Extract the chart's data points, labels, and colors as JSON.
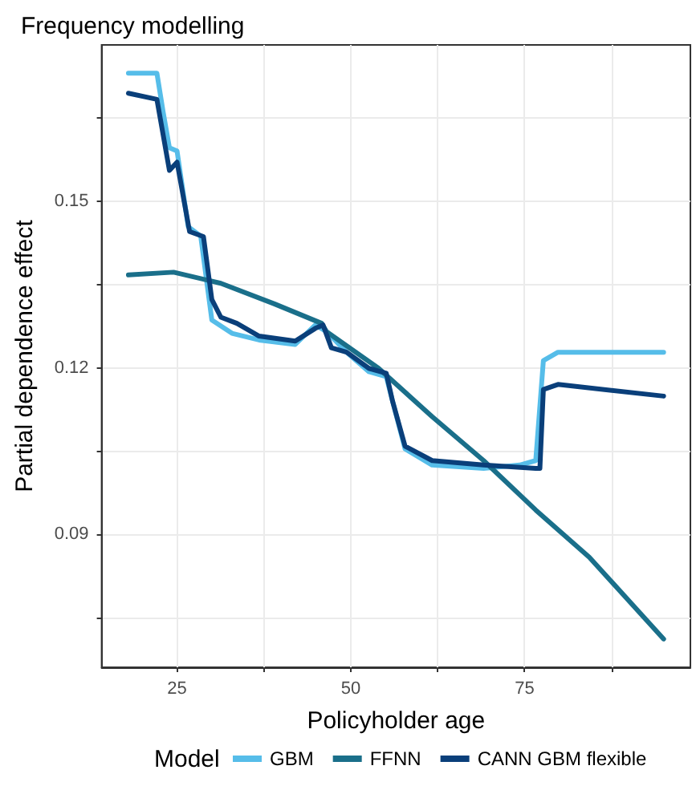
{
  "chart_data": {
    "type": "line",
    "title": "Frequency modelling",
    "xlabel": "Policyholder age",
    "ylabel": "Partial dependence effect",
    "legend_title": "Model",
    "xlim": [
      14.15,
      98.85
    ],
    "xticks": [
      {
        "value": 25,
        "label": "25"
      },
      {
        "value": 37.5,
        "label": null
      },
      {
        "value": 50,
        "label": "50"
      },
      {
        "value": 62.5,
        "label": null
      },
      {
        "value": 75,
        "label": "75"
      },
      {
        "value": 87.5,
        "label": null
      }
    ],
    "ylim": [
      0.0661,
      0.1781
    ],
    "yticks": [
      {
        "value": 0.075,
        "label": null
      },
      {
        "value": 0.09,
        "label": "0.09"
      },
      {
        "value": 0.105,
        "label": null
      },
      {
        "value": 0.12,
        "label": "0.12"
      },
      {
        "value": 0.135,
        "label": null
      },
      {
        "value": 0.15,
        "label": "0.15"
      },
      {
        "value": 0.165,
        "label": null
      }
    ],
    "grid": true,
    "legend": "bottom",
    "marker": "none",
    "line_style": "solid",
    "series": [
      {
        "name": "GBM",
        "color": "#56bde9",
        "x": [
          18,
          22.1,
          23,
          23.9,
          25,
          26.6,
          28.4,
          30,
          32.9,
          36.8,
          42,
          44.9,
          46.5,
          49.4,
          52.6,
          55.1,
          56,
          57.8,
          61.7,
          69.1,
          74.3,
          76.6,
          77.7,
          79.8,
          95
        ],
        "values": [
          0.173,
          0.173,
          0.166,
          0.1596,
          0.159,
          0.1454,
          0.1437,
          0.1286,
          0.1262,
          0.125,
          0.1242,
          0.1277,
          0.1265,
          0.1228,
          0.1193,
          0.1184,
          0.114,
          0.1054,
          0.1025,
          0.1019,
          0.1025,
          0.1033,
          0.1213,
          0.1228,
          0.1228
        ]
      },
      {
        "name": "FFNN",
        "color": "#1a6f8a",
        "x": [
          18,
          24.5,
          31.3,
          39,
          45.8,
          46.5,
          54,
          61.7,
          69.1,
          76.6,
          84.3,
          95
        ],
        "values": [
          0.1367,
          0.1372,
          0.1352,
          0.1315,
          0.128,
          0.1265,
          0.1199,
          0.1112,
          0.1033,
          0.0944,
          0.0859,
          0.0712
        ]
      },
      {
        "name": "CANN GBM flexible",
        "color": "#0a3f7a",
        "x": [
          18,
          22.1,
          23.9,
          25,
          26.8,
          28.8,
          30,
          31.3,
          33.6,
          36.8,
          42,
          44.9,
          46,
          47.2,
          49.4,
          52.6,
          55.1,
          56,
          57.8,
          61.7,
          69.1,
          76.6,
          77.2,
          77.7,
          79.8,
          95
        ],
        "values": [
          0.1694,
          0.1683,
          0.1555,
          0.157,
          0.1445,
          0.1436,
          0.1323,
          0.1291,
          0.128,
          0.1257,
          0.1248,
          0.1271,
          0.1277,
          0.1236,
          0.1228,
          0.1199,
          0.119,
          0.114,
          0.1059,
          0.1033,
          0.1025,
          0.1019,
          0.1019,
          0.1161,
          0.117,
          0.1149
        ]
      }
    ]
  }
}
